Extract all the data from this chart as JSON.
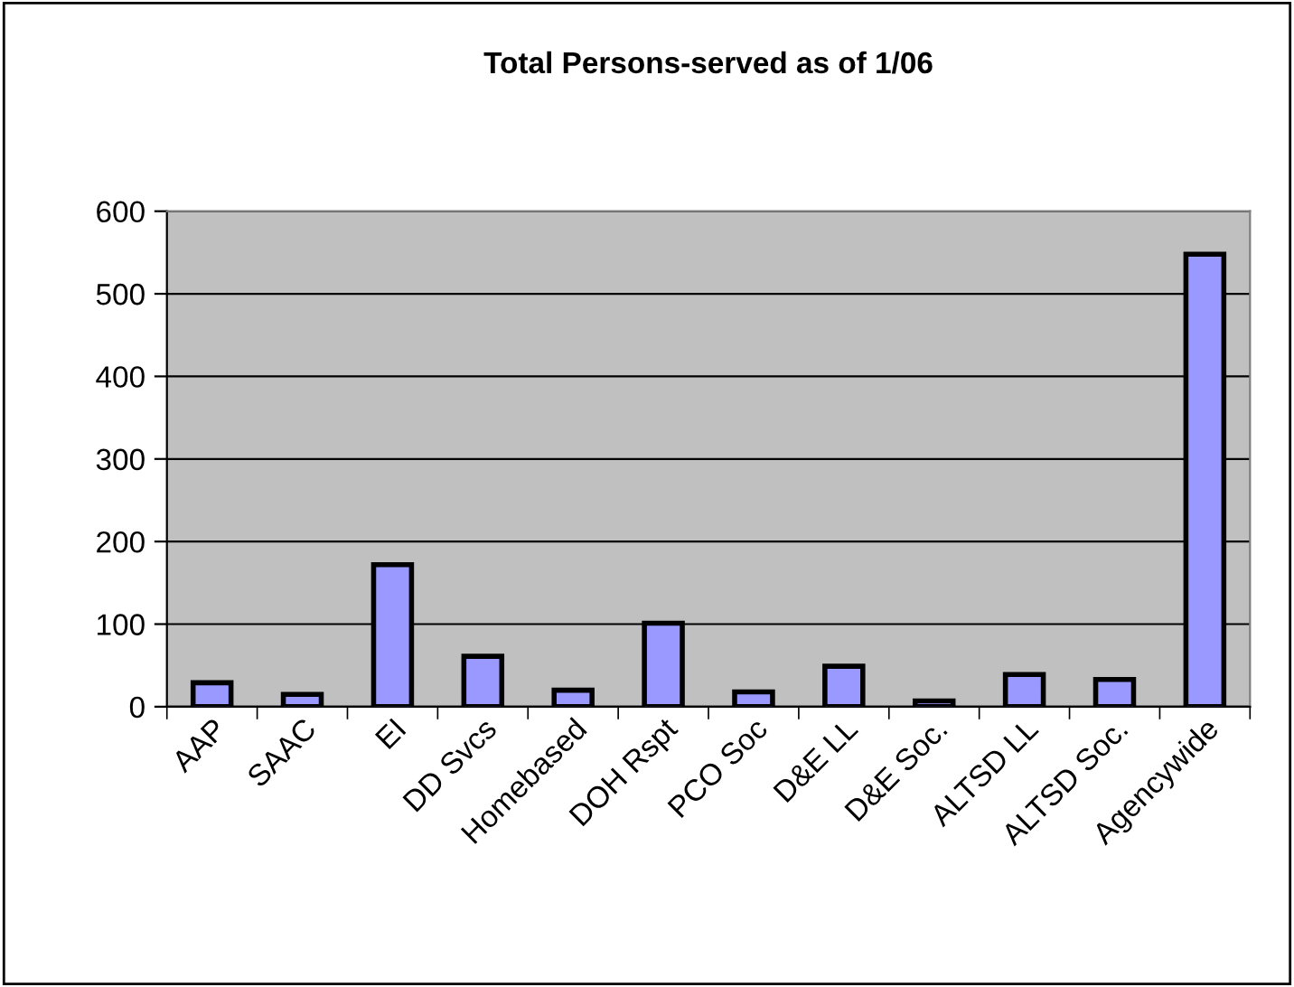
{
  "chart_data": {
    "type": "bar",
    "title": "Total Persons-served as of 1/06",
    "categories": [
      "AAP",
      "SAAC",
      "EI",
      "DD Svcs",
      "Homebased",
      "DOH Rspt",
      "PCO Soc",
      "D&E LL",
      "D&E Soc.",
      "ALTSD LL",
      "ALTSD Soc.",
      "Agencywide"
    ],
    "values": [
      29,
      15,
      172,
      61,
      20,
      101,
      18,
      49,
      7,
      39,
      33,
      548
    ],
    "color": "#9999ff",
    "ylim": [
      0,
      600
    ],
    "yticks": [
      0,
      100,
      200,
      300,
      400,
      500,
      600
    ],
    "grid": "y",
    "legend": false
  }
}
